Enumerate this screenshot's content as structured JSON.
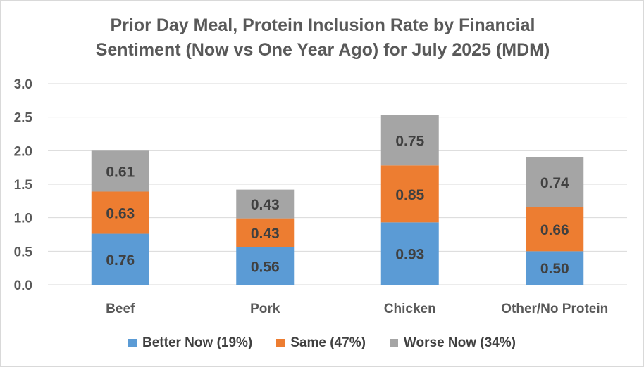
{
  "chart_data": {
    "type": "bar",
    "stacked": true,
    "title_lines": [
      "Prior Day Meal, Protein Inclusion Rate by Financial",
      "Sentiment (Now vs One Year Ago) for July 2025 (MDM)"
    ],
    "categories": [
      "Beef",
      "Pork",
      "Chicken",
      "Other/No Protein"
    ],
    "series": [
      {
        "name": "Better Now (19%)",
        "color": "#5b9bd5",
        "values": [
          0.76,
          0.56,
          0.93,
          0.5
        ],
        "labels": [
          "0.76",
          "0.56",
          "0.93",
          "0.50"
        ]
      },
      {
        "name": "Same (47%)",
        "color": "#ed7d31",
        "values": [
          0.63,
          0.43,
          0.85,
          0.66
        ],
        "labels": [
          "0.63",
          "0.43",
          "0.85",
          "0.66"
        ]
      },
      {
        "name": "Worse Now (34%)",
        "color": "#a5a5a5",
        "values": [
          0.61,
          0.43,
          0.75,
          0.74
        ],
        "labels": [
          "0.61",
          "0.43",
          "0.75",
          "0.74"
        ]
      }
    ],
    "ylim": [
      0,
      3.0
    ],
    "yticks": [
      "0.0",
      "0.5",
      "1.0",
      "1.5",
      "2.0",
      "2.5",
      "3.0"
    ],
    "grid": true,
    "legend_position": "bottom"
  }
}
